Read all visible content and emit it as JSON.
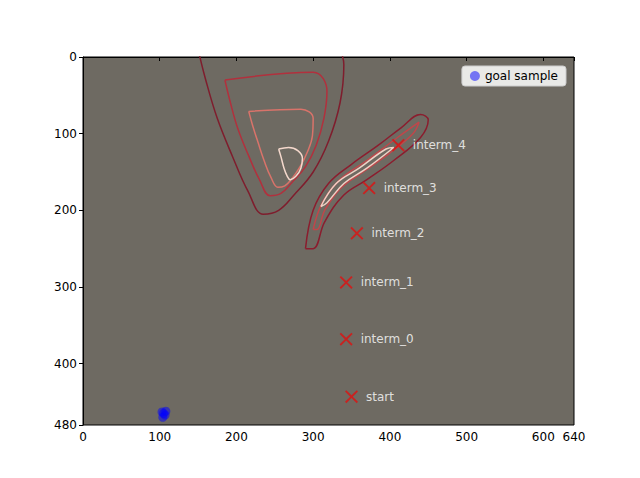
{
  "chart_data": {
    "type": "scatter",
    "xlim": [
      0,
      640
    ],
    "ylim": [
      480,
      0
    ],
    "xticks": [
      0,
      100,
      200,
      300,
      400,
      500,
      600
    ],
    "yticks": [
      0,
      100,
      200,
      300,
      400
    ],
    "grid": false,
    "legend": "upper right",
    "series": [
      {
        "name": "goal sample",
        "type": "scatter",
        "color": "#0000ff",
        "marker": "o",
        "x": [
          103,
          107,
          105,
          104,
          108
        ],
        "y": [
          463,
          467,
          465,
          470,
          462
        ]
      }
    ],
    "waypoints": {
      "labels": [
        "start",
        "interm_0",
        "interm_1",
        "interm_2",
        "interm_3",
        "interm_4"
      ],
      "x": [
        350,
        343,
        343,
        357,
        373,
        411
      ],
      "y": [
        443,
        368,
        294,
        230,
        171,
        115
      ],
      "color": "#e01010",
      "marker": "x"
    },
    "contours": [
      {
        "color": "#7f1d2d",
        "x": [
          150,
          160,
          175,
          195,
          215,
          235,
          255,
          275,
          300,
          320,
          335,
          340,
          335
        ],
        "y": [
          -10,
          30,
          80,
          130,
          175,
          205,
          200,
          180,
          150,
          110,
          60,
          10,
          -10
        ]
      },
      {
        "color": "#b2303d",
        "x": [
          185,
          192,
          202,
          216,
          230,
          244,
          258,
          272,
          290,
          304,
          314,
          318,
          300,
          185
        ],
        "y": [
          30,
          59,
          94,
          129,
          160,
          181,
          178,
          164,
          143,
          115,
          80,
          45,
          20,
          30
        ]
      },
      {
        "color": "#d9736a",
        "x": [
          216,
          221,
          228,
          236,
          245,
          254,
          263,
          272,
          283,
          292,
          299,
          300,
          284,
          216
        ],
        "y": [
          71,
          89,
          111,
          135,
          157,
          170,
          168,
          159,
          143,
          125,
          103,
          80,
          68,
          71
        ]
      },
      {
        "color": "#f4d8cc",
        "x": [
          255,
          258,
          262,
          266,
          270,
          278,
          284,
          286,
          280,
          268,
          255
        ],
        "y": [
          120,
          130,
          145,
          155,
          160,
          155,
          145,
          132,
          122,
          118,
          120
        ]
      },
      {
        "color": "#8b1d2e",
        "x": [
          290,
          300,
          320,
          350,
          385,
          415,
          440,
          450,
          440,
          405,
          370,
          340,
          315,
          300,
          290
        ],
        "y": [
          250,
          200,
          165,
          140,
          115,
          92,
          75,
          82,
          105,
          135,
          160,
          180,
          215,
          250,
          250
        ]
      },
      {
        "color": "#c0464a",
        "x": [
          300,
          312,
          335,
          370,
          410,
          438,
          430,
          400,
          365,
          335,
          315,
          305,
          300
        ],
        "y": [
          225,
          190,
          160,
          135,
          105,
          85,
          100,
          125,
          150,
          172,
          200,
          225,
          225
        ]
      },
      {
        "color": "#f0d0c4",
        "x": [
          310,
          330,
          360,
          395,
          405,
          370,
          340,
          318,
          310
        ],
        "y": [
          195,
          165,
          145,
          120,
          118,
          145,
          165,
          190,
          195
        ]
      }
    ]
  }
}
